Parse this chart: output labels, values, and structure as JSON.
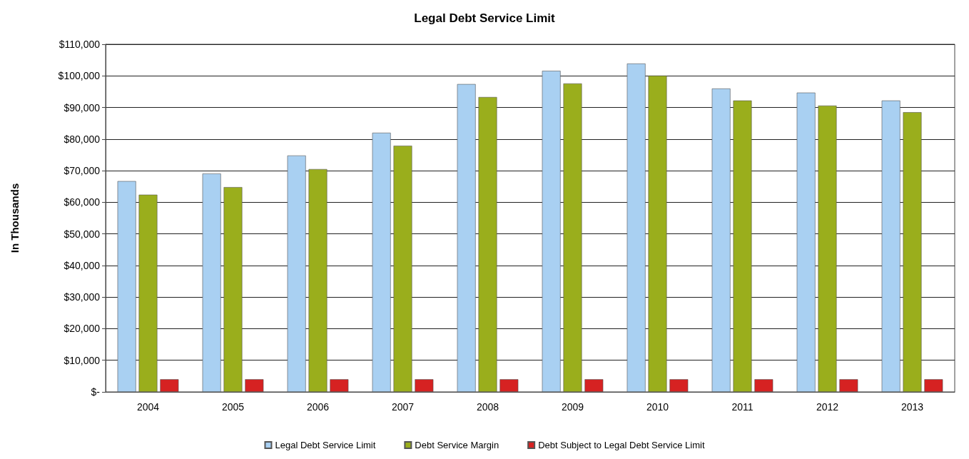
{
  "chart_data": {
    "type": "bar",
    "title": "Legal Debt Service Limit",
    "ylabel": "In Thousands",
    "categories": [
      "2004",
      "2005",
      "2006",
      "2007",
      "2008",
      "2009",
      "2010",
      "2011",
      "2012",
      "2013"
    ],
    "series": [
      {
        "name": "Legal Debt Service Limit",
        "color": "#a9d0f2",
        "values": [
          66700,
          69100,
          74800,
          82000,
          97400,
          101600,
          103900,
          96000,
          94700,
          92200
        ]
      },
      {
        "name": "Debt Service Margin",
        "color": "#9aae1c",
        "values": [
          62400,
          64800,
          70500,
          77900,
          93300,
          97600,
          100100,
          92200,
          90600,
          88500
        ]
      },
      {
        "name": "Debt Subject to Legal Debt Service Limit",
        "color": "#d62222",
        "values": [
          4000,
          4000,
          4000,
          4000,
          4000,
          4000,
          4000,
          4000,
          4000,
          4000
        ]
      }
    ],
    "ylim": [
      0,
      110000
    ],
    "yticks": [
      {
        "value": 0,
        "label": "$-"
      },
      {
        "value": 10000,
        "label": "$10,000"
      },
      {
        "value": 20000,
        "label": "$20,000"
      },
      {
        "value": 30000,
        "label": "$30,000"
      },
      {
        "value": 40000,
        "label": "$40,000"
      },
      {
        "value": 50000,
        "label": "$50,000"
      },
      {
        "value": 60000,
        "label": "$60,000"
      },
      {
        "value": 70000,
        "label": "$70,000"
      },
      {
        "value": 80000,
        "label": "$80,000"
      },
      {
        "value": 90000,
        "label": "$90,000"
      },
      {
        "value": 100000,
        "label": "$100,000"
      },
      {
        "value": 110000,
        "label": "$110,000"
      }
    ],
    "grid": "y",
    "legend": "bottom"
  }
}
